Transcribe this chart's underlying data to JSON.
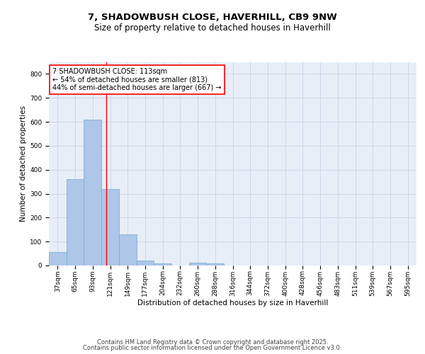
{
  "title_line1": "7, SHADOWBUSH CLOSE, HAVERHILL, CB9 9NW",
  "title_line2": "Size of property relative to detached houses in Haverhill",
  "xlabel": "Distribution of detached houses by size in Haverhill",
  "ylabel": "Number of detached properties",
  "categories": [
    "37sqm",
    "65sqm",
    "93sqm",
    "121sqm",
    "149sqm",
    "177sqm",
    "204sqm",
    "232sqm",
    "260sqm",
    "288sqm",
    "316sqm",
    "344sqm",
    "372sqm",
    "400sqm",
    "428sqm",
    "456sqm",
    "483sqm",
    "511sqm",
    "539sqm",
    "567sqm",
    "595sqm"
  ],
  "values": [
    55,
    360,
    610,
    320,
    130,
    22,
    8,
    0,
    12,
    8,
    0,
    0,
    0,
    0,
    0,
    0,
    0,
    0,
    0,
    0,
    0
  ],
  "bar_color": "#aec6e8",
  "bar_edge_color": "#6baad4",
  "property_line_x": 2.76,
  "annotation_text": "7 SHADOWBUSH CLOSE: 113sqm\n← 54% of detached houses are smaller (813)\n44% of semi-detached houses are larger (667) →",
  "annotation_box_color": "white",
  "annotation_box_edge_color": "red",
  "property_line_color": "red",
  "ylim": [
    0,
    850
  ],
  "yticks": [
    0,
    100,
    200,
    300,
    400,
    500,
    600,
    700,
    800
  ],
  "grid_color": "#c8d4e8",
  "background_color": "#e8eef8",
  "footer_line1": "Contains HM Land Registry data © Crown copyright and database right 2025.",
  "footer_line2": "Contains public sector information licensed under the Open Government Licence v3.0.",
  "title_fontsize": 9.5,
  "subtitle_fontsize": 8.5,
  "axis_label_fontsize": 7.5,
  "tick_fontsize": 6.5,
  "annotation_fontsize": 7,
  "footer_fontsize": 6
}
